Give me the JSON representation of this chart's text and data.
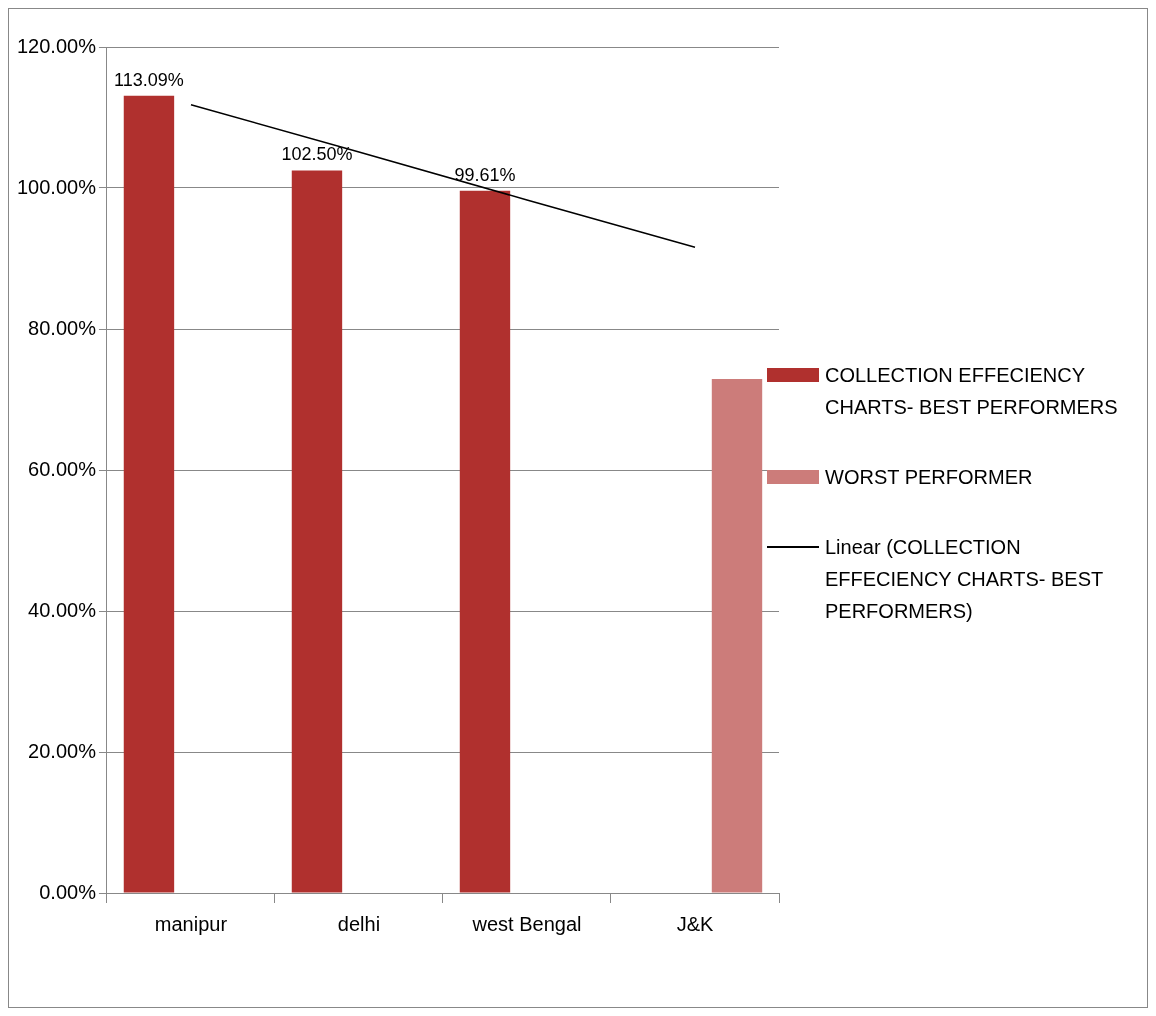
{
  "chart_data": {
    "type": "bar",
    "categories": [
      "manipur",
      "delhi",
      "west Bengal",
      "J&K"
    ],
    "ylim": [
      0,
      120
    ],
    "yticks": [
      {
        "value": 0,
        "label": "0.00%"
      },
      {
        "value": 20,
        "label": "20.00%"
      },
      {
        "value": 40,
        "label": "40.00%"
      },
      {
        "value": 60,
        "label": "60.00%"
      },
      {
        "value": 80,
        "label": "80.00%"
      },
      {
        "value": 100,
        "label": "100.00%"
      },
      {
        "value": 120,
        "label": "120.00%"
      }
    ],
    "grid": "y",
    "legend": "right",
    "marker": "none",
    "series": [
      {
        "name": "COLLECTION EFFECIENCY CHARTS- BEST PERFORMERS",
        "color": "#b0302e",
        "values": [
          113.09,
          102.5,
          99.61,
          null
        ],
        "value_labels": [
          "113.09%",
          "102.50%",
          "99.61%",
          null
        ]
      },
      {
        "name": "WORST PERFORMER",
        "color": "#cc7c7a",
        "values": [
          null,
          null,
          null,
          72.9
        ]
      },
      {
        "name": "Linear (COLLECTION EFFECIENCY CHARTS- BEST PERFORMERS)",
        "type": "line",
        "color": "#000000",
        "values": [
          111.8,
          105.1,
          98.3,
          91.6
        ]
      }
    ]
  }
}
